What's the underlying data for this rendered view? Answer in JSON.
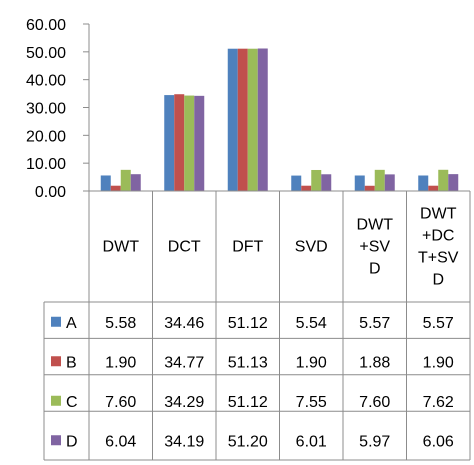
{
  "chart_data": {
    "type": "bar",
    "categories": [
      "DWT",
      "DCT",
      "DFT",
      "SVD",
      "DWT+SVD",
      "DWT+DCT+SVD"
    ],
    "category_label_lines": [
      [
        "DWT"
      ],
      [
        "DCT"
      ],
      [
        "DFT"
      ],
      [
        "SVD"
      ],
      [
        "DWT",
        "+SV",
        "D"
      ],
      [
        "DWT",
        "+DC",
        "T+SV",
        "D"
      ]
    ],
    "series": [
      {
        "name": "A",
        "color": "#4F81BD",
        "values": [
          5.58,
          34.46,
          51.12,
          5.54,
          5.57,
          5.57
        ],
        "value_labels": [
          "5.58",
          "34.46",
          "51.12",
          "5.54",
          "5.57",
          "5.57"
        ]
      },
      {
        "name": "B",
        "color": "#C0504D",
        "values": [
          1.9,
          34.77,
          51.13,
          1.9,
          1.88,
          1.9
        ],
        "value_labels": [
          "1.90",
          "34.77",
          "51.13",
          "1.90",
          "1.88",
          "1.90"
        ]
      },
      {
        "name": "C",
        "color": "#9BBB59",
        "values": [
          7.6,
          34.29,
          51.12,
          7.55,
          7.6,
          7.62
        ],
        "value_labels": [
          "7.60",
          "34.29",
          "51.12",
          "7.55",
          "7.60",
          "7.62"
        ]
      },
      {
        "name": "D",
        "color": "#8064A2",
        "values": [
          6.04,
          34.19,
          51.2,
          6.01,
          5.97,
          6.06
        ],
        "value_labels": [
          "6.04",
          "34.19",
          "51.20",
          "6.01",
          "5.97",
          "6.06"
        ]
      }
    ],
    "ylim": [
      0,
      60
    ],
    "y_ticks": [
      "0.00",
      "10.00",
      "20.00",
      "30.00",
      "40.00",
      "50.00",
      "60.00"
    ],
    "grid": false,
    "legend": "data-table",
    "title": "",
    "xlabel": "",
    "ylabel": ""
  }
}
